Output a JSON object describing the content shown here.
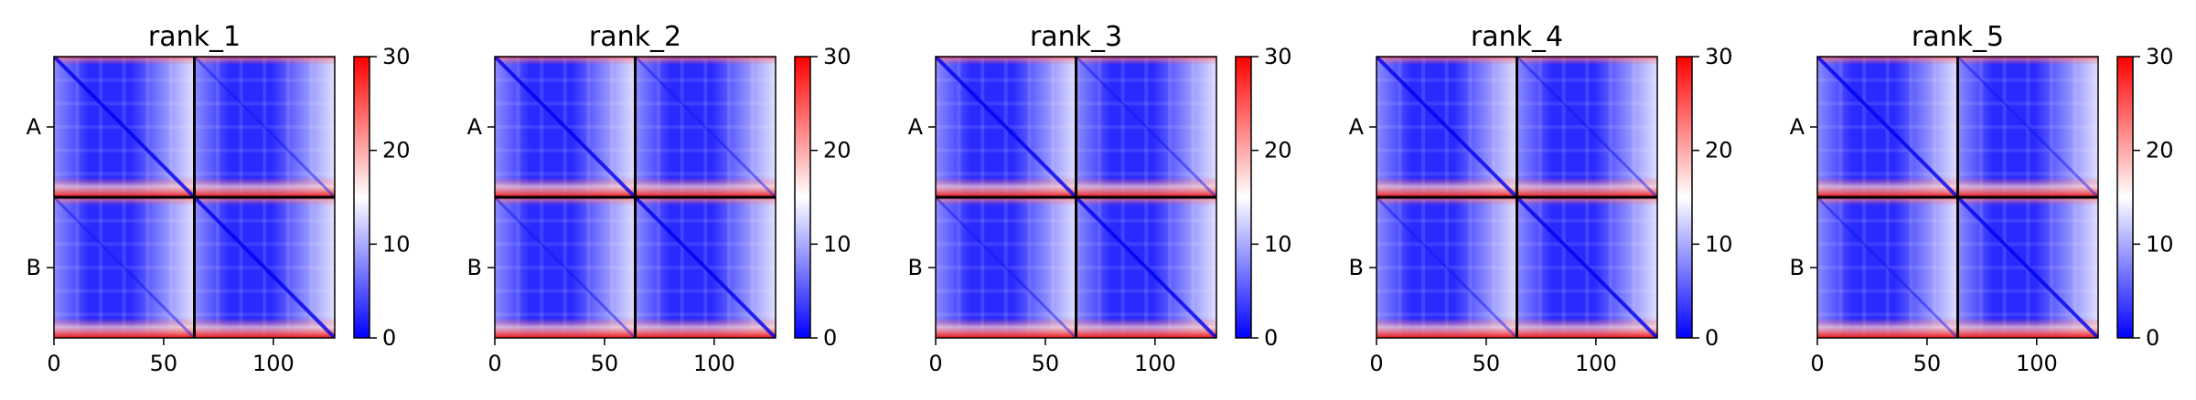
{
  "chart_data": {
    "type": "heatmap",
    "colormap": "bwr",
    "colors": {
      "low": "#0000ff",
      "mid": "#ffffff",
      "high": "#ff0000"
    },
    "chain_boundary": 64,
    "sequence_length": 128,
    "xticks": [
      0,
      50,
      100
    ],
    "yticks": [
      "A",
      "B"
    ],
    "colorbar": {
      "min": 0,
      "max": 30,
      "ticks": [
        0,
        10,
        20,
        30
      ]
    },
    "panels": [
      {
        "title": "rank_1"
      },
      {
        "title": "rank_2"
      },
      {
        "title": "rank_3"
      },
      {
        "title": "rank_4"
      },
      {
        "title": "rank_5"
      }
    ]
  }
}
